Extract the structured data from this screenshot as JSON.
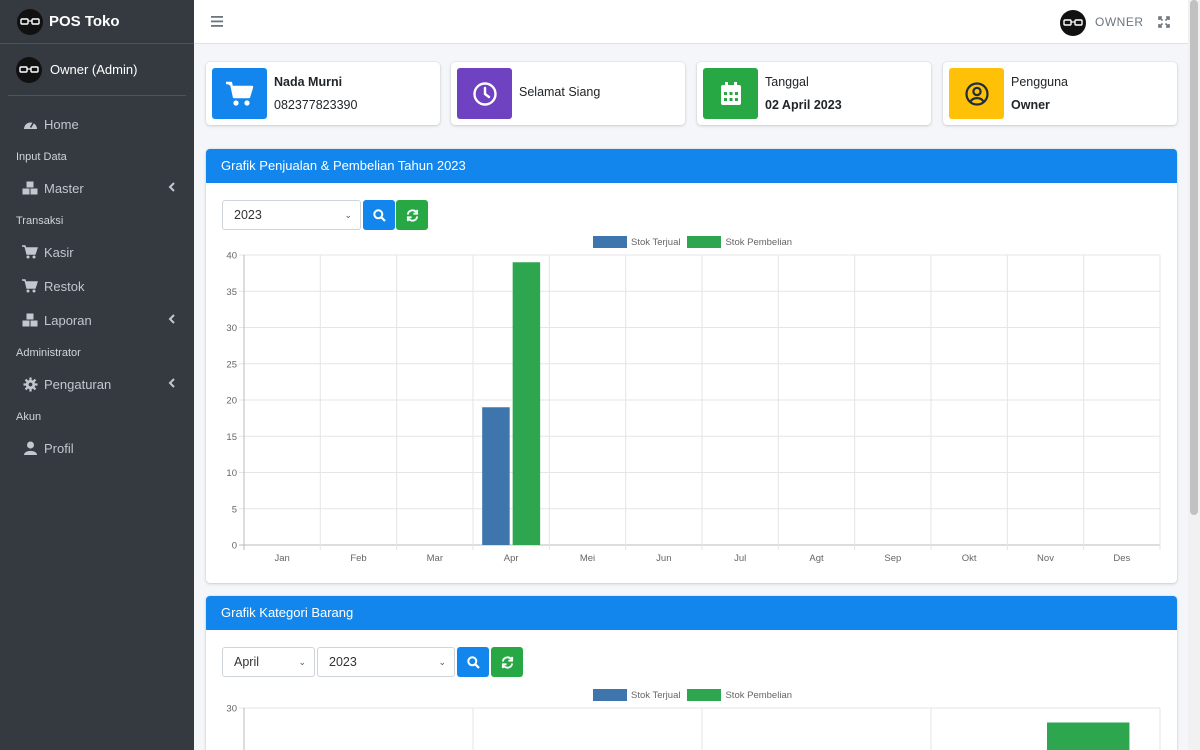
{
  "app": {
    "title": "POS Toko",
    "user": "Owner (Admin)",
    "top_user": "OWNER"
  },
  "nav": {
    "home": "Home",
    "header_input": "Input Data",
    "master": "Master",
    "header_transaksi": "Transaksi",
    "kasir": "Kasir",
    "restok": "Restok",
    "laporan": "Laporan",
    "header_admin": "Administrator",
    "pengaturan": "Pengaturan",
    "header_akun": "Akun",
    "profil": "Profil"
  },
  "info": {
    "store_name": "Nada Murni",
    "phone": "082377823390",
    "greeting": "Selamat Siang",
    "date_label": "Tanggal",
    "date_value": "02 April 2023",
    "user_label": "Pengguna",
    "user_value": "Owner"
  },
  "colors": {
    "primary": "#1286ec",
    "success": "#28a745",
    "purple": "#6f42c1",
    "warning": "#ffc107",
    "sold": "#3e75ad",
    "purchase": "#2ea650"
  },
  "chart1": {
    "title": "Grafik Penjualan & Pembelian Tahun 2023",
    "year_selected": "2023"
  },
  "chart2": {
    "title": "Grafik Kategori Barang",
    "month_selected": "April",
    "year_selected": "2023"
  },
  "chart_data": [
    {
      "type": "bar",
      "categories": [
        "Jan",
        "Feb",
        "Mar",
        "Apr",
        "Mei",
        "Jun",
        "Jul",
        "Agt",
        "Sep",
        "Okt",
        "Nov",
        "Des"
      ],
      "series": [
        {
          "name": "Stok Terjual",
          "values": [
            0,
            0,
            0,
            19,
            0,
            0,
            0,
            0,
            0,
            0,
            0,
            0
          ]
        },
        {
          "name": "Stok Pembelian",
          "values": [
            0,
            0,
            0,
            39,
            0,
            0,
            0,
            0,
            0,
            0,
            0,
            0
          ]
        }
      ],
      "ylim": [
        0,
        40
      ],
      "yticks": [
        0,
        5,
        10,
        15,
        20,
        25,
        30,
        35,
        40
      ],
      "grid": true,
      "legend": "top-center"
    },
    {
      "type": "bar",
      "series": [
        {
          "name": "Stok Terjual",
          "values": [
            0,
            0,
            0,
            0
          ]
        },
        {
          "name": "Stok Pembelian",
          "values": [
            0,
            0,
            0,
            28.5
          ]
        }
      ],
      "yticks_visible": [
        30
      ],
      "grid": true,
      "legend": "top-center"
    }
  ]
}
